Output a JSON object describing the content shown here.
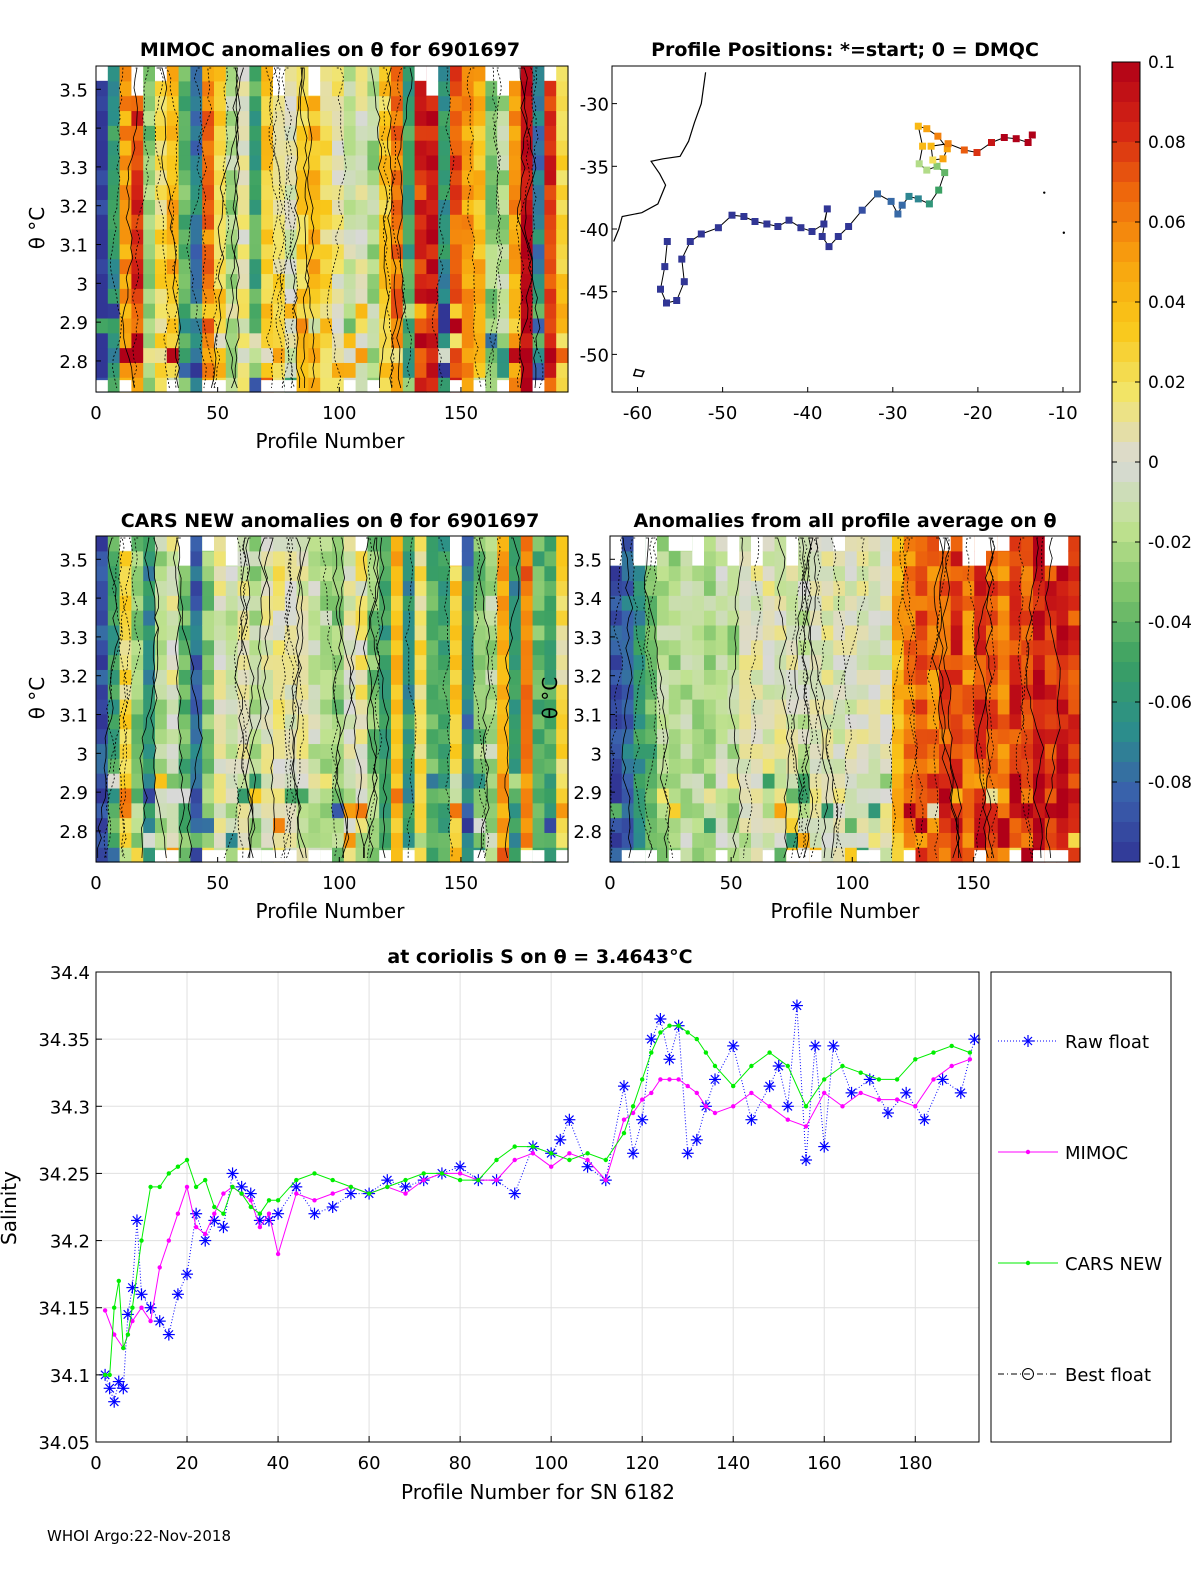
{
  "footer": "WHOI Argo:22-Nov-2018",
  "colorbar": {
    "ticks": [
      "0.1",
      "0.08",
      "0.06",
      "0.04",
      "0.02",
      "0",
      "-0.02",
      "-0.04",
      "-0.06",
      "-0.08",
      "-0.1"
    ],
    "tick_values": [
      0.1,
      0.08,
      0.06,
      0.04,
      0.02,
      0,
      -0.02,
      -0.04,
      -0.06,
      -0.08,
      -0.1
    ],
    "range": [
      -0.1,
      0.1
    ],
    "colors": [
      "#313695",
      "#3a60ad",
      "#2b8f8a",
      "#3aa062",
      "#7cc36a",
      "#bfe28f",
      "#d9d9d9",
      "#f2e56a",
      "#f9c81a",
      "#f8a30e",
      "#ef6a0c",
      "#d52514",
      "#b00018"
    ]
  },
  "chart_data": [
    {
      "type": "heatmap",
      "title": "MIMOC anomalies on θ  for 6901697",
      "xlabel": "Profile Number",
      "ylabel": "θ °C",
      "xlim": [
        0,
        194
      ],
      "ylim": [
        2.72,
        3.56
      ],
      "xticks": [
        0,
        50,
        100,
        150
      ],
      "yticks": [
        2.8,
        2.9,
        3,
        3.1,
        3.2,
        3.3,
        3.4,
        3.5
      ],
      "ytick_labels": [
        "2.8",
        "2.9",
        "3",
        "3.1",
        "3.2",
        "3.3",
        "3.4",
        "3.5"
      ],
      "column_anomalies": [
        -0.1,
        -0.06,
        0.05,
        0.08,
        -0.03,
        0.02,
        0.04,
        -0.04,
        -0.07,
        0.06,
        0.03,
        -0.02,
        0.01,
        -0.05,
        0.03,
        0.02,
        0.0,
        0.03,
        0.04,
        0.02,
        0.01,
        -0.01,
        0.0,
        -0.02,
        0.03,
        0.06,
        -0.05,
        0.08,
        0.09,
        -0.06,
        0.07,
        0.05,
        0.04,
        -0.03,
        -0.02,
        0.05,
        0.1,
        -0.07,
        0.08,
        0.03
      ]
    },
    {
      "type": "scatter",
      "title": "Profile Positions: *=start; 0 = DMQC",
      "xlim": [
        -63,
        -8
      ],
      "ylim": [
        -53,
        -27
      ],
      "xticks": [
        -60,
        -50,
        -40,
        -30,
        -20,
        -10
      ],
      "yticks": [
        -30,
        -35,
        -40,
        -45,
        -50
      ],
      "lon": [
        -56.5,
        -56.8,
        -57.3,
        -56.6,
        -55.4,
        -54.5,
        -54.8,
        -53.8,
        -52.5,
        -50.5,
        -48.9,
        -47.5,
        -46.2,
        -44.8,
        -43.5,
        -42.2,
        -40.8,
        -39.5,
        -38.1,
        -37.7,
        -38.3,
        -37.5,
        -36.4,
        -35.2,
        -33.6,
        -31.8,
        -30.2,
        -29.4,
        -28.9,
        -28.1,
        -27.0,
        -25.7,
        -24.6,
        -23.9,
        -24.8,
        -26.0,
        -26.9,
        -26.5,
        -27.0,
        -26.0,
        -24.7,
        -23.6,
        -24.1,
        -25.3,
        -25.5,
        -23.5,
        -21.6,
        -20.1,
        -18.4,
        -16.9,
        -15.5,
        -14.1,
        -13.6
      ],
      "lat": [
        -41.0,
        -43.0,
        -44.8,
        -45.9,
        -45.7,
        -44.2,
        -42.4,
        -41.0,
        -40.4,
        -39.9,
        -38.9,
        -39.0,
        -39.4,
        -39.6,
        -39.8,
        -39.3,
        -39.9,
        -40.2,
        -39.6,
        -38.4,
        -40.6,
        -41.4,
        -40.6,
        -39.8,
        -38.5,
        -37.2,
        -37.8,
        -38.8,
        -38.1,
        -37.4,
        -37.6,
        -38.0,
        -36.9,
        -35.5,
        -35.0,
        -35.3,
        -34.8,
        -33.4,
        -31.8,
        -32.0,
        -32.6,
        -33.6,
        -34.4,
        -34.5,
        -33.4,
        -33.2,
        -33.7,
        -33.9,
        -33.1,
        -32.7,
        -32.8,
        -33.1,
        -32.5
      ],
      "point_anomalies": [
        -0.1,
        -0.1,
        -0.1,
        -0.1,
        -0.1,
        -0.1,
        -0.1,
        -0.1,
        -0.1,
        -0.1,
        -0.1,
        -0.1,
        -0.1,
        -0.1,
        -0.1,
        -0.1,
        -0.1,
        -0.1,
        -0.1,
        -0.1,
        -0.1,
        -0.1,
        -0.1,
        -0.1,
        -0.09,
        -0.08,
        -0.08,
        -0.08,
        -0.08,
        -0.07,
        -0.07,
        -0.06,
        -0.05,
        -0.04,
        -0.03,
        -0.02,
        -0.02,
        0.04,
        0.04,
        0.05,
        0.06,
        0.05,
        0.05,
        0.02,
        0.04,
        0.06,
        0.07,
        0.08,
        0.09,
        0.1,
        0.1,
        0.1,
        0.1
      ]
    },
    {
      "type": "heatmap",
      "title": "CARS NEW anomalies on θ for 6901697",
      "xlabel": "Profile Number",
      "ylabel": "θ °C",
      "xlim": [
        0,
        194
      ],
      "ylim": [
        2.72,
        3.56
      ],
      "xticks": [
        0,
        50,
        100,
        150
      ],
      "yticks": [
        2.8,
        2.9,
        3,
        3.1,
        3.2,
        3.3,
        3.4,
        3.5
      ],
      "ytick_labels": [
        "2.8",
        "2.9",
        "3",
        "3.1",
        "3.2",
        "3.3",
        "3.4",
        "3.5"
      ],
      "column_anomalies": [
        -0.09,
        -0.05,
        0.02,
        -0.03,
        -0.06,
        -0.02,
        0.0,
        -0.04,
        -0.08,
        -0.03,
        0.0,
        -0.01,
        0.0,
        -0.02,
        0.0,
        0.01,
        0.0,
        0.0,
        -0.01,
        -0.02,
        -0.03,
        0.0,
        0.01,
        -0.03,
        -0.05,
        0.04,
        -0.06,
        0.02,
        -0.04,
        -0.05,
        0.03,
        -0.07,
        -0.03,
        -0.02,
        0.05,
        -0.06,
        0.06,
        -0.04,
        -0.05,
        0.02
      ]
    },
    {
      "type": "heatmap",
      "title": "Anomalies from all profile average on θ",
      "xlabel": "Profile Number",
      "ylabel": "θ °C",
      "xlim": [
        0,
        194
      ],
      "ylim": [
        2.72,
        3.56
      ],
      "xticks": [
        0,
        50,
        100,
        150
      ],
      "yticks": [
        2.8,
        2.9,
        3,
        3.1,
        3.2,
        3.3,
        3.4,
        3.5
      ],
      "ytick_labels": [
        "2.8",
        "2.9",
        "3",
        "3.1",
        "3.2",
        "3.3",
        "3.4",
        "3.5"
      ],
      "column_anomalies": [
        -0.09,
        -0.08,
        -0.06,
        -0.04,
        -0.02,
        -0.02,
        -0.02,
        -0.02,
        -0.02,
        -0.01,
        -0.02,
        0.0,
        0.0,
        0.0,
        0.0,
        0.0,
        -0.01,
        0.0,
        0.0,
        0.0,
        0.0,
        0.0,
        0.0,
        0.0,
        0.04,
        0.06,
        0.07,
        0.06,
        0.07,
        0.08,
        0.06,
        0.08,
        0.07,
        0.06,
        0.08,
        0.07,
        0.09,
        0.08,
        0.09,
        0.08
      ]
    },
    {
      "type": "line",
      "title": "at coriolis S on θ = 3.4643°C",
      "xlabel": "Profile Number for SN 6182",
      "ylabel": "Salinity",
      "xlim": [
        0,
        194
      ],
      "ylim": [
        34.05,
        34.4
      ],
      "xticks": [
        0,
        20,
        40,
        60,
        80,
        100,
        120,
        140,
        160,
        180
      ],
      "yticks": [
        34.05,
        34.1,
        34.15,
        34.2,
        34.25,
        34.3,
        34.35,
        34.4
      ],
      "ytick_labels": [
        "34.05",
        "34.1",
        "34.15",
        "34.2",
        "34.25",
        "34.3",
        "34.35",
        "34.4"
      ],
      "legend": [
        "Raw float",
        "MIMOC",
        "CARS NEW",
        "Best float"
      ],
      "series": [
        {
          "name": "Raw float",
          "color": "#0000ff",
          "x": [
            2,
            3,
            4,
            5,
            6,
            7,
            8,
            9,
            10,
            12,
            14,
            16,
            18,
            20,
            22,
            24,
            26,
            28,
            30,
            32,
            34,
            36,
            38,
            40,
            44,
            48,
            52,
            56,
            60,
            64,
            68,
            72,
            76,
            80,
            84,
            88,
            92,
            96,
            100,
            102,
            104,
            108,
            112,
            116,
            118,
            120,
            122,
            124,
            126,
            128,
            130,
            132,
            134,
            136,
            140,
            144,
            148,
            150,
            152,
            154,
            156,
            158,
            160,
            162,
            166,
            170,
            174,
            178,
            182,
            186,
            190,
            193
          ],
          "values": [
            34.1,
            34.09,
            34.08,
            34.095,
            34.09,
            34.145,
            34.165,
            34.215,
            34.16,
            34.15,
            34.14,
            34.13,
            34.16,
            34.175,
            34.22,
            34.2,
            34.215,
            34.21,
            34.25,
            34.24,
            34.235,
            34.215,
            34.215,
            34.22,
            34.24,
            34.22,
            34.225,
            34.235,
            34.235,
            34.245,
            34.24,
            34.245,
            34.25,
            34.255,
            34.245,
            34.245,
            34.235,
            34.27,
            34.265,
            34.275,
            34.29,
            34.255,
            34.245,
            34.315,
            34.265,
            34.29,
            34.35,
            34.365,
            34.335,
            34.36,
            34.265,
            34.275,
            34.3,
            34.32,
            34.345,
            34.29,
            34.315,
            34.33,
            34.3,
            34.375,
            34.26,
            34.345,
            34.27,
            34.345,
            34.31,
            34.32,
            34.295,
            34.31,
            34.29,
            34.32,
            34.31,
            34.35
          ]
        },
        {
          "name": "MIMOC",
          "color": "#ff00ff",
          "x": [
            2,
            4,
            6,
            8,
            10,
            12,
            14,
            16,
            18,
            20,
            22,
            24,
            26,
            28,
            30,
            32,
            34,
            36,
            38,
            40,
            44,
            48,
            52,
            56,
            60,
            64,
            68,
            72,
            76,
            80,
            84,
            88,
            92,
            96,
            100,
            104,
            108,
            112,
            116,
            118,
            120,
            122,
            124,
            126,
            128,
            130,
            132,
            134,
            136,
            140,
            144,
            148,
            152,
            156,
            160,
            164,
            168,
            172,
            176,
            180,
            184,
            188,
            192
          ],
          "values": [
            34.148,
            34.13,
            34.12,
            34.14,
            34.15,
            34.14,
            34.18,
            34.2,
            34.22,
            34.24,
            34.21,
            34.205,
            34.22,
            34.235,
            34.24,
            34.235,
            34.23,
            34.21,
            34.22,
            34.19,
            34.235,
            34.23,
            34.235,
            34.24,
            34.235,
            34.24,
            34.235,
            34.245,
            34.25,
            34.25,
            34.245,
            34.245,
            34.26,
            34.265,
            34.255,
            34.265,
            34.26,
            34.245,
            34.29,
            34.295,
            34.305,
            34.31,
            34.32,
            34.32,
            34.32,
            34.315,
            34.31,
            34.3,
            34.295,
            34.3,
            34.31,
            34.3,
            34.29,
            34.285,
            34.31,
            34.3,
            34.31,
            34.305,
            34.305,
            34.3,
            34.32,
            34.33,
            34.335
          ]
        },
        {
          "name": "CARS NEW",
          "color": "#00ee00",
          "x": [
            2,
            3,
            4,
            5,
            6,
            7,
            8,
            10,
            12,
            14,
            16,
            18,
            20,
            22,
            24,
            26,
            28,
            30,
            32,
            34,
            36,
            38,
            40,
            44,
            48,
            52,
            56,
            60,
            64,
            68,
            72,
            76,
            80,
            84,
            88,
            92,
            96,
            100,
            104,
            108,
            112,
            116,
            118,
            120,
            122,
            124,
            126,
            128,
            130,
            132,
            134,
            136,
            140,
            144,
            148,
            152,
            156,
            160,
            164,
            168,
            172,
            176,
            180,
            184,
            188,
            192
          ],
          "values": [
            34.1,
            34.1,
            34.15,
            34.17,
            34.12,
            34.13,
            34.15,
            34.2,
            34.24,
            34.24,
            34.25,
            34.255,
            34.26,
            34.24,
            34.245,
            34.225,
            34.22,
            34.24,
            34.235,
            34.225,
            34.22,
            34.23,
            34.23,
            34.245,
            34.25,
            34.245,
            34.24,
            34.235,
            34.24,
            34.245,
            34.25,
            34.25,
            34.245,
            34.245,
            34.26,
            34.27,
            34.27,
            34.265,
            34.26,
            34.265,
            34.26,
            34.28,
            34.3,
            34.32,
            34.34,
            34.355,
            34.36,
            34.36,
            34.355,
            34.35,
            34.34,
            34.33,
            34.315,
            34.33,
            34.34,
            34.33,
            34.3,
            34.32,
            34.33,
            34.325,
            34.32,
            34.32,
            34.335,
            34.34,
            34.345,
            34.34
          ]
        },
        {
          "name": "Best float",
          "color": "#000000",
          "x": [],
          "values": []
        }
      ]
    }
  ]
}
